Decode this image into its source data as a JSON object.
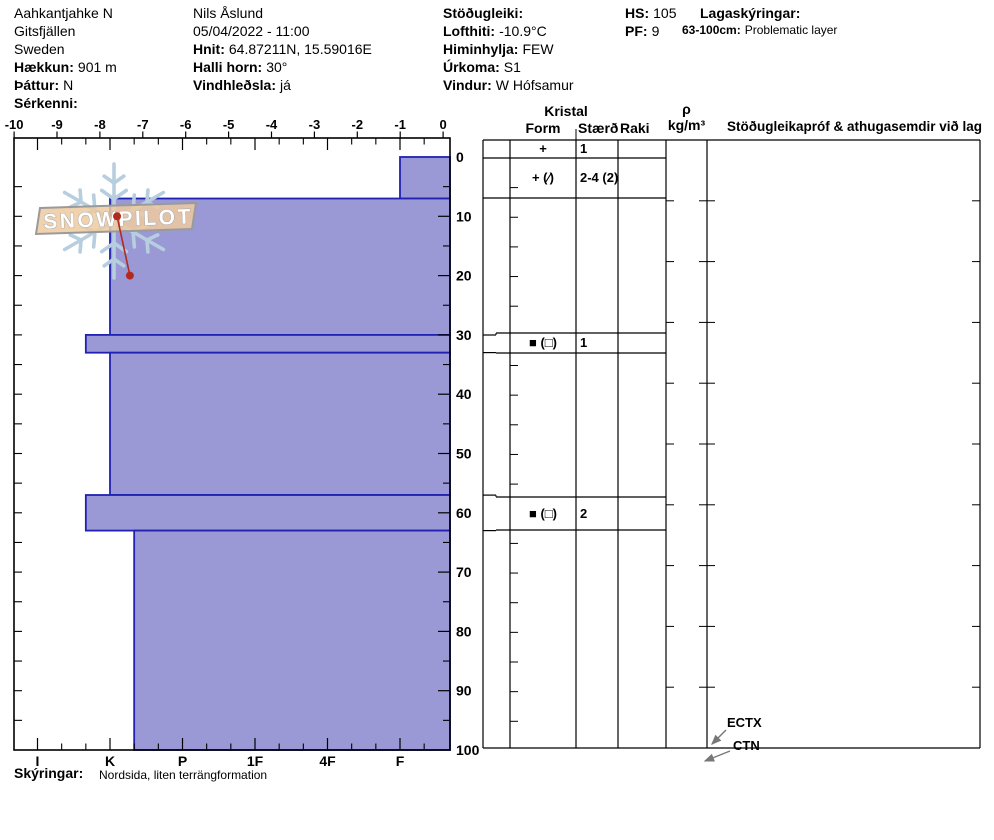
{
  "meta_left": [
    {
      "label": "",
      "value": "Aahkantjahke N"
    },
    {
      "label": "",
      "value": "Gitsfjällen"
    },
    {
      "label": "",
      "value": "Sweden"
    },
    {
      "label": "Hækkun:",
      "value": "901 m"
    },
    {
      "label": "Þáttur:",
      "value": "N"
    },
    {
      "label": "Sérkenni:",
      "value": ""
    }
  ],
  "meta_mid": [
    {
      "label": "",
      "value": "Nils Åslund"
    },
    {
      "label": "",
      "value": "05/04/2022 - 11:00"
    },
    {
      "label": "Hnit:",
      "value": "64.87211N, 15.59016E"
    },
    {
      "label": "Halli horn:",
      "value": "30°"
    },
    {
      "label": "Vindhleðsla:",
      "value": "já"
    }
  ],
  "meta_weather": [
    {
      "label": "Stöðugleiki:",
      "value": ""
    },
    {
      "label": "Lofthiti:",
      "value": "-10.9°C"
    },
    {
      "label": "Himinhylja:",
      "value": "FEW"
    },
    {
      "label": "Úrkoma:",
      "value": "S1"
    },
    {
      "label": "Vindur:",
      "value": "W Hófsamur"
    }
  ],
  "totals": {
    "hs_label": "HS:",
    "hs_value": "105",
    "pf_label": "PF:",
    "pf_value": "9"
  },
  "layer_notes": {
    "title": "Lagaskýringar:",
    "entries": [
      {
        "range": "63-100cm:",
        "text": "Problematic layer"
      }
    ]
  },
  "logo": {
    "text": "SNOWPILOT"
  },
  "panel": {
    "kristal_label": "Kristal",
    "form_label": "Form",
    "size_label": "Stærð",
    "raki_label": "Raki",
    "density_rho": "ρ",
    "density_unit": "kg/m³",
    "stability_label": "Stöðugleikapróf & athugasemdir við lag",
    "ect_label": "ECTX",
    "ctn_label": "CTN"
  },
  "footer": {
    "label": "Skýringar:",
    "value": "Nordsida, liten terrängformation"
  },
  "colors": {
    "layer_fill": "#9a99d6",
    "layer_border": "#2121b2",
    "temp_line": "#b22a1e",
    "logo_flake": "#b7cedf",
    "logo_banner": "#eecaa0",
    "arrow_gray": "#777777"
  },
  "chart_data": {
    "type": "snow-profile",
    "title": "Snow pit hardness / temperature profile",
    "temperature_axis": {
      "unit": "°C",
      "range": [
        -10,
        0
      ],
      "labels": [
        -10,
        -9,
        -8,
        -7,
        -6,
        -5,
        -4,
        -3,
        -2,
        -1,
        0
      ],
      "position": "top"
    },
    "depth_axis": {
      "unit": "cm",
      "range": [
        0,
        100
      ],
      "ticks": [
        0,
        10,
        20,
        30,
        40,
        50,
        60,
        70,
        80,
        90,
        100
      ],
      "position": "right",
      "direction": "down"
    },
    "hardness_axis": {
      "categories": [
        "I",
        "K",
        "P",
        "1F",
        "4F",
        "F"
      ],
      "position": "bottom"
    },
    "layers": [
      {
        "top_cm": 0,
        "bottom_cm": 7,
        "hardness": "F"
      },
      {
        "top_cm": 7,
        "bottom_cm": 30,
        "hardness": "K"
      },
      {
        "top_cm": 30,
        "bottom_cm": 33,
        "hardness": "K+"
      },
      {
        "top_cm": 33,
        "bottom_cm": 57,
        "hardness": "K"
      },
      {
        "top_cm": 57,
        "bottom_cm": 63,
        "hardness": "K+"
      },
      {
        "top_cm": 63,
        "bottom_cm": 100,
        "hardness": "K-"
      }
    ],
    "temperature_profile": [
      {
        "depth_cm": 10,
        "temp_c": -7.6
      },
      {
        "depth_cm": 20,
        "temp_c": -7.3
      }
    ],
    "grain_rows": [
      {
        "depth_range_cm": "0-7",
        "form": "+",
        "size": "1"
      },
      {
        "depth_range_cm": "7-30",
        "form": "+ (∕)",
        "size": "2-4 (2)"
      },
      {
        "depth_range_cm": "30-33",
        "form": "■ (□)",
        "size": "1"
      },
      {
        "depth_range_cm": "57-63",
        "form": "■ (□)",
        "size": "2"
      }
    ],
    "stability_tests": [
      {
        "name": "ECTX",
        "depth_cm": 100
      },
      {
        "name": "CTN",
        "depth_cm": 100
      }
    ]
  }
}
